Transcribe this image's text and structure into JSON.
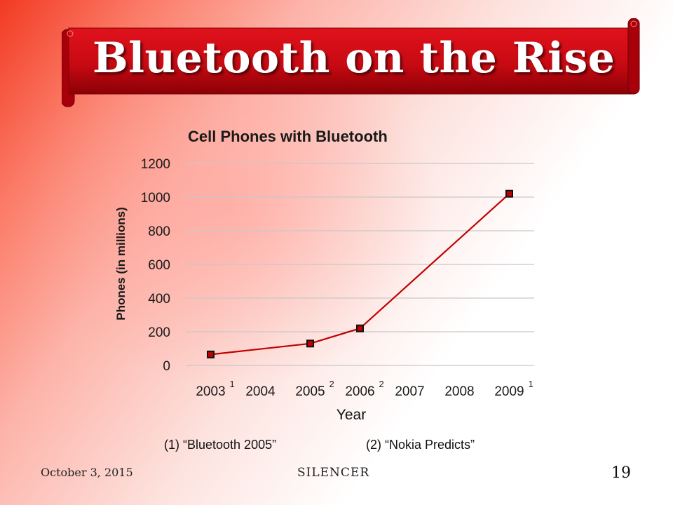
{
  "slide": {
    "title": "Bluetooth on the Rise",
    "footer_date": "October 3, 2015",
    "footer_center": "SILENCER",
    "page_number": "19",
    "banner_color": "#cc0a14"
  },
  "chart_data": {
    "type": "line",
    "title": "Cell Phones with Bluetooth",
    "xlabel": "Year",
    "ylabel": "Phones (in millions)",
    "categories": [
      "2003",
      "2004",
      "2005",
      "2006",
      "2007",
      "2008",
      "2009"
    ],
    "category_superscripts": [
      "1",
      "",
      "2",
      "2",
      "",
      "",
      "1"
    ],
    "points": [
      {
        "x": "2003",
        "y": 65
      },
      {
        "x": "2005",
        "y": 130
      },
      {
        "x": "2006",
        "y": 220
      },
      {
        "x": "2009",
        "y": 1020
      }
    ],
    "ylim": [
      0,
      1200
    ],
    "yticks": [
      0,
      200,
      400,
      600,
      800,
      1000,
      1200
    ],
    "grid": true,
    "legend": "none",
    "line_color": "#c00000",
    "marker_fill": "#c00000",
    "marker_edge": "#111111",
    "grid_color": "#c8c8c8",
    "notes": [
      "(1) “Bluetooth 2005”",
      "(2) “Nokia Predicts”"
    ]
  }
}
